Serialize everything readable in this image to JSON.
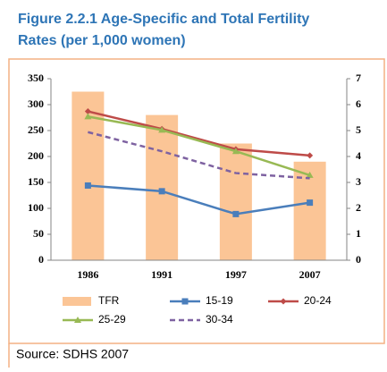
{
  "chart_data": {
    "type": "bar-line",
    "title": "Figure 2.2.1 Age-Specific and Total Fertility",
    "subtitle": "Rates  (per 1,000 women)",
    "source": "Source: SDHS 2007",
    "categories": [
      "1986",
      "1991",
      "1997",
      "2007"
    ],
    "ylim": [
      0,
      350
    ],
    "yticks": [
      0,
      50,
      100,
      150,
      200,
      250,
      300,
      350
    ],
    "y2lim": [
      0,
      7
    ],
    "y2ticks": [
      0,
      1,
      2,
      3,
      4,
      5,
      6,
      7
    ],
    "series": [
      {
        "name": "TFR",
        "type": "bar",
        "axis": "y2",
        "color": "#fbc596",
        "values": [
          6.5,
          5.6,
          4.5,
          3.8
        ]
      },
      {
        "name": "15-19",
        "type": "line",
        "color": "#4a7ebb",
        "marker": "square",
        "values": [
          144,
          133,
          89,
          111
        ]
      },
      {
        "name": "20-24",
        "type": "line",
        "color": "#be4b48",
        "marker": "diamond",
        "values": [
          287,
          253,
          214,
          202
        ]
      },
      {
        "name": "25-29",
        "type": "line",
        "color": "#98b954",
        "marker": "triangle",
        "values": [
          277,
          251,
          210,
          164
        ]
      },
      {
        "name": "30-34",
        "type": "line",
        "color": "#7e62a1",
        "dash": true,
        "values": [
          247,
          210,
          168,
          158
        ]
      }
    ]
  }
}
